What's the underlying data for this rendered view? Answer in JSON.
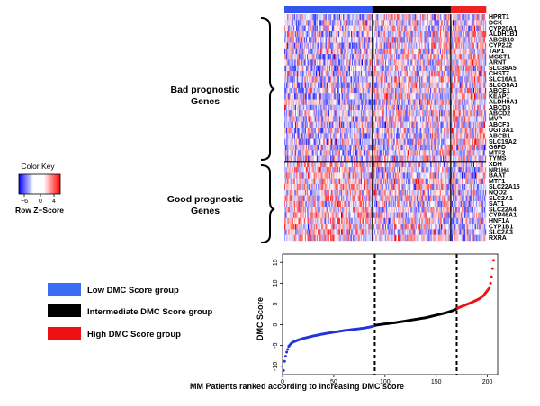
{
  "heatmap": {
    "groups": [
      {
        "name": "low",
        "color": "#3355ee",
        "n": 90
      },
      {
        "name": "intermediate",
        "color": "#000000",
        "n": 80
      },
      {
        "name": "high",
        "color": "#ee2222",
        "n": 36
      }
    ],
    "bad_label": [
      "Bad prognostic",
      "Genes"
    ],
    "good_label": [
      "Good prognostic",
      "Genes"
    ],
    "bad_genes": [
      "HPRT1",
      "DCK",
      "CYP20A1",
      "ALDH1B1",
      "ABCB10",
      "CYP2J2",
      "TAP1",
      "MGST1",
      "ARNT",
      "SLC38A5",
      "CHST7",
      "SLC16A1",
      "SLCO5A1",
      "ABCE1",
      "KEAP1",
      "ALDH9A1",
      "ABCD3",
      "ABCD2",
      "MVP",
      "ABCF3",
      "UGT3A1",
      "ABCB1",
      "SLC19A2",
      "G6PD",
      "MTF2",
      "TYMS"
    ],
    "good_genes": [
      "XDH",
      "NR1H4",
      "BAAT",
      "MTF1",
      "SLC22A15",
      "NQO2",
      "SLC2A1",
      "SAT1",
      "SLC22A4",
      "CYP46A1",
      "HNF1A",
      "CYP1B1",
      "SLC2A3",
      "RXRA"
    ]
  },
  "color_key": {
    "title": "Color Key",
    "ticks": [
      "−6",
      "0",
      "4"
    ],
    "tick_values": [
      -6,
      0,
      4
    ],
    "xlabel": "Row Z−Score",
    "colors": [
      "#0000ff",
      "#ffffff",
      "#ff0000"
    ]
  },
  "legend": [
    {
      "label": "Low DMC Score group",
      "color": "#3a6cf4"
    },
    {
      "label": "Intermediate  DMC Score group",
      "color": "#000000"
    },
    {
      "label": "High DMC Score group",
      "color": "#ee1111"
    }
  ],
  "chart_data": {
    "type": "scatter",
    "xlabel": "MM Patients ranked according to increasing DMC score",
    "ylabel": "DMC Score",
    "xlim": [
      0,
      210
    ],
    "ylim": [
      -12,
      17
    ],
    "xticks": [
      0,
      50,
      100,
      150,
      200
    ],
    "yticks": [
      -10,
      -5,
      0,
      5,
      10,
      15
    ],
    "cutoffs": [
      90,
      170
    ],
    "series": [
      {
        "color": "#2233dd",
        "x_range": [
          1,
          90
        ],
        "x": [
          1,
          2,
          3,
          4,
          5,
          6,
          8,
          10,
          15,
          20,
          30,
          40,
          50,
          60,
          70,
          80,
          88,
          90
        ],
        "y": [
          -11,
          -8.8,
          -7.6,
          -6.6,
          -5.9,
          -5.2,
          -4.6,
          -4.2,
          -3.7,
          -3.3,
          -2.7,
          -2.2,
          -1.8,
          -1.4,
          -1.1,
          -0.8,
          -0.4,
          -0.2
        ]
      },
      {
        "color": "#000000",
        "x_range": [
          91,
          170
        ],
        "x": [
          91,
          100,
          110,
          120,
          130,
          140,
          150,
          160,
          165,
          170
        ],
        "y": [
          -0.1,
          0.2,
          0.5,
          0.9,
          1.3,
          1.7,
          2.3,
          2.9,
          3.3,
          3.8
        ]
      },
      {
        "color": "#ee1111",
        "x_range": [
          171,
          206
        ],
        "x": [
          171,
          175,
          180,
          185,
          190,
          193,
          196,
          198,
          200,
          202,
          203,
          204,
          205,
          206
        ],
        "y": [
          4.0,
          4.4,
          4.9,
          5.4,
          6.0,
          6.4,
          7.0,
          7.6,
          8.2,
          9.0,
          10.0,
          11.5,
          13.5,
          15.5
        ]
      }
    ]
  }
}
